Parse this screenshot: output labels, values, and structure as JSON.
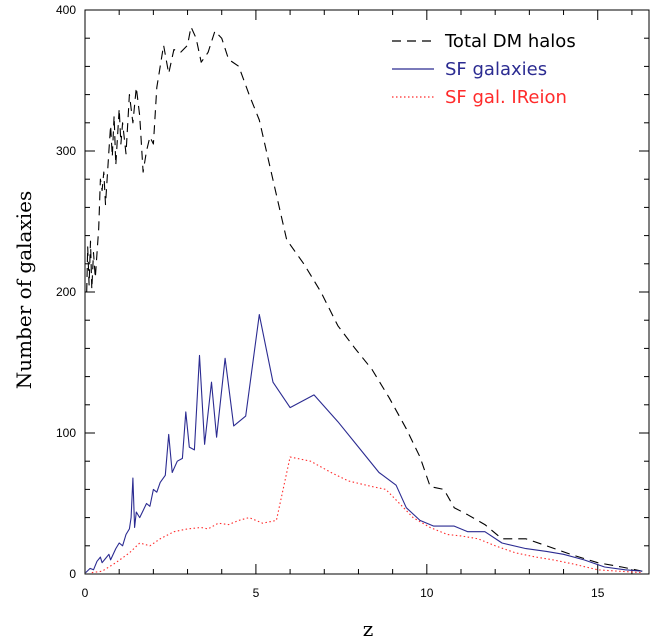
{
  "chart_data": {
    "type": "line",
    "title": "",
    "xlabel": "z",
    "ylabel": "Number of galaxies",
    "xlim": [
      0,
      16.5
    ],
    "ylim": [
      0,
      400
    ],
    "grid": false,
    "legend_position": "top-right",
    "x_ticks": [
      0,
      5,
      10,
      15
    ],
    "y_ticks": [
      0,
      100,
      200,
      300,
      400
    ],
    "series": [
      {
        "name": "Total DM halos",
        "color": "#000000",
        "style": "dashed",
        "points": [
          [
            0.05,
            200
          ],
          [
            0.08,
            232
          ],
          [
            0.12,
            205
          ],
          [
            0.16,
            236
          ],
          [
            0.2,
            202
          ],
          [
            0.25,
            228
          ],
          [
            0.3,
            210
          ],
          [
            0.4,
            245
          ],
          [
            0.45,
            280
          ],
          [
            0.5,
            272
          ],
          [
            0.55,
            285
          ],
          [
            0.6,
            262
          ],
          [
            0.7,
            300
          ],
          [
            0.75,
            318
          ],
          [
            0.8,
            296
          ],
          [
            0.85,
            325
          ],
          [
            0.9,
            290
          ],
          [
            1.0,
            330
          ],
          [
            1.05,
            305
          ],
          [
            1.1,
            320
          ],
          [
            1.2,
            298
          ],
          [
            1.3,
            340
          ],
          [
            1.4,
            320
          ],
          [
            1.5,
            345
          ],
          [
            1.6,
            325
          ],
          [
            1.7,
            285
          ],
          [
            1.8,
            300
          ],
          [
            1.9,
            310
          ],
          [
            2.0,
            305
          ],
          [
            2.1,
            345
          ],
          [
            2.3,
            375
          ],
          [
            2.45,
            355
          ],
          [
            2.6,
            372
          ],
          [
            2.8,
            370
          ],
          [
            3.0,
            375
          ],
          [
            3.1,
            388
          ],
          [
            3.25,
            380
          ],
          [
            3.4,
            363
          ],
          [
            3.6,
            370
          ],
          [
            3.8,
            385
          ],
          [
            4.0,
            380
          ],
          [
            4.2,
            365
          ],
          [
            4.5,
            360
          ],
          [
            4.8,
            340
          ],
          [
            5.1,
            322
          ],
          [
            5.4,
            290
          ],
          [
            5.9,
            237
          ],
          [
            6.4,
            220
          ],
          [
            6.9,
            200
          ],
          [
            7.4,
            176
          ],
          [
            7.9,
            160
          ],
          [
            8.4,
            145
          ],
          [
            8.9,
            125
          ],
          [
            9.4,
            103
          ],
          [
            9.8,
            83
          ],
          [
            10.1,
            62
          ],
          [
            10.5,
            60
          ],
          [
            10.8,
            47
          ],
          [
            11.2,
            42
          ],
          [
            11.7,
            35
          ],
          [
            12.2,
            25
          ],
          [
            12.9,
            25
          ],
          [
            13.5,
            20
          ],
          [
            14.2,
            14
          ],
          [
            15.0,
            8
          ],
          [
            15.7,
            5
          ],
          [
            16.3,
            2
          ]
        ]
      },
      {
        "name": "SF galaxies",
        "color": "#2b2b91",
        "style": "solid",
        "points": [
          [
            0.02,
            1
          ],
          [
            0.15,
            4
          ],
          [
            0.25,
            3
          ],
          [
            0.35,
            9
          ],
          [
            0.45,
            12
          ],
          [
            0.5,
            8
          ],
          [
            0.6,
            11
          ],
          [
            0.7,
            14
          ],
          [
            0.75,
            10
          ],
          [
            0.9,
            18
          ],
          [
            1.0,
            22
          ],
          [
            1.1,
            20
          ],
          [
            1.2,
            28
          ],
          [
            1.3,
            32
          ],
          [
            1.35,
            40
          ],
          [
            1.4,
            68
          ],
          [
            1.45,
            33
          ],
          [
            1.5,
            44
          ],
          [
            1.6,
            40
          ],
          [
            1.7,
            45
          ],
          [
            1.8,
            50
          ],
          [
            1.9,
            48
          ],
          [
            2.0,
            60
          ],
          [
            2.1,
            58
          ],
          [
            2.2,
            65
          ],
          [
            2.35,
            70
          ],
          [
            2.45,
            99
          ],
          [
            2.55,
            72
          ],
          [
            2.7,
            80
          ],
          [
            2.85,
            82
          ],
          [
            2.95,
            115
          ],
          [
            3.05,
            90
          ],
          [
            3.2,
            88
          ],
          [
            3.35,
            155
          ],
          [
            3.5,
            92
          ],
          [
            3.7,
            136
          ],
          [
            3.85,
            97
          ],
          [
            4.1,
            153
          ],
          [
            4.35,
            105
          ],
          [
            4.7,
            112
          ],
          [
            5.1,
            184
          ],
          [
            5.5,
            136
          ],
          [
            6.0,
            118
          ],
          [
            6.7,
            127
          ],
          [
            7.4,
            108
          ],
          [
            8.0,
            90
          ],
          [
            8.6,
            72
          ],
          [
            9.1,
            63
          ],
          [
            9.4,
            47
          ],
          [
            9.8,
            38
          ],
          [
            10.2,
            34
          ],
          [
            10.8,
            34
          ],
          [
            11.2,
            30
          ],
          [
            11.7,
            30
          ],
          [
            12.2,
            22
          ],
          [
            12.9,
            18
          ],
          [
            13.5,
            16
          ],
          [
            14.0,
            14
          ],
          [
            14.6,
            10
          ],
          [
            15.2,
            5
          ],
          [
            15.8,
            3
          ],
          [
            16.3,
            2
          ]
        ]
      },
      {
        "name": "SF gal. IReion",
        "color": "#ff2a2a",
        "style": "dotted",
        "points": [
          [
            0.2,
            1
          ],
          [
            0.5,
            2
          ],
          [
            0.9,
            8
          ],
          [
            1.3,
            15
          ],
          [
            1.6,
            22
          ],
          [
            1.9,
            20
          ],
          [
            2.2,
            25
          ],
          [
            2.6,
            30
          ],
          [
            3.0,
            32
          ],
          [
            3.4,
            33
          ],
          [
            3.6,
            32
          ],
          [
            3.9,
            36
          ],
          [
            4.2,
            35
          ],
          [
            4.5,
            38
          ],
          [
            4.8,
            40
          ],
          [
            5.2,
            36
          ],
          [
            5.6,
            38
          ],
          [
            6.0,
            83
          ],
          [
            6.6,
            80
          ],
          [
            7.2,
            72
          ],
          [
            7.7,
            66
          ],
          [
            8.4,
            62
          ],
          [
            8.8,
            60
          ],
          [
            9.2,
            50
          ],
          [
            9.6,
            40
          ],
          [
            10.1,
            33
          ],
          [
            10.6,
            28
          ],
          [
            11.0,
            27
          ],
          [
            11.5,
            25
          ],
          [
            12.0,
            20
          ],
          [
            12.6,
            15
          ],
          [
            13.2,
            12
          ],
          [
            13.7,
            10
          ],
          [
            14.3,
            7
          ],
          [
            15.0,
            3
          ],
          [
            15.6,
            2
          ],
          [
            16.3,
            1
          ]
        ]
      }
    ]
  }
}
